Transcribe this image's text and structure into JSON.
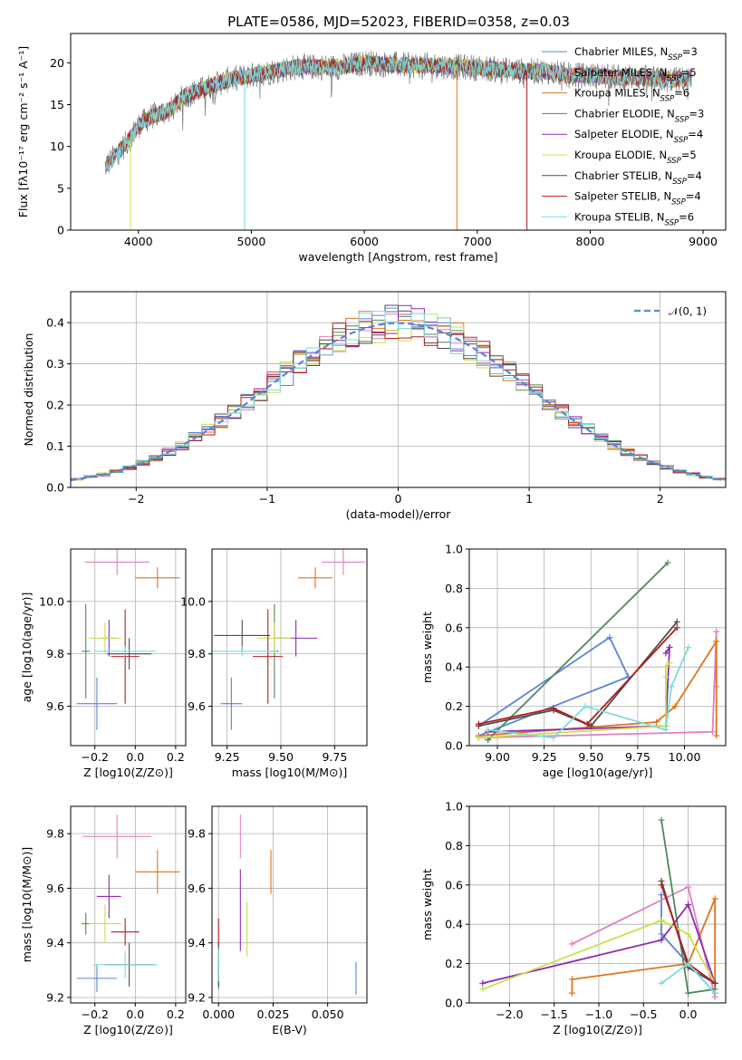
{
  "title": "PLATE=0586, MJD=52023, FIBERID=0358, z=0.03",
  "colors": {
    "chabrier_miles": "#5b84d6",
    "salpeter_miles": "#e37fbf",
    "kroupa_miles": "#e0731c",
    "chabrier_elodie": "#4c8a5e",
    "salpeter_elodie": "#8e2bb5",
    "kroupa_elodie": "#c9e04a",
    "chabrier_stelib": "#4d4d4d",
    "salpeter_stelib": "#b41d1d",
    "kroupa_stelib": "#7edbe0"
  },
  "chart_data": [
    {
      "id": "spectrum",
      "type": "line",
      "title": "PLATE=0586, MJD=52023, FIBERID=0358, z=0.03",
      "xlabel": "wavelength [Angstrom, rest frame]",
      "ylabel": "Flux [fλ10⁻¹⁷ erg cm⁻² s⁻¹ A⁻¹]",
      "xlim": [
        3400,
        9200
      ],
      "ylim": [
        0,
        23.5
      ],
      "xticks": [
        4000,
        5000,
        6000,
        7000,
        8000,
        9000
      ],
      "yticks": [
        0,
        5,
        10,
        15,
        20
      ],
      "legend_position": "top-right",
      "legend": [
        "Chabrier MILES, N_SSP=3",
        "Salpeter MILES, N_SSP=5",
        "Kroupa MILES, N_SSP=6",
        "Chabrier ELODIE, N_SSP=3",
        "Salpeter ELODIE, N_SSP=4",
        "Kroupa ELODIE, N_SSP=5",
        "Chabrier STELIB, N_SSP=4",
        "Salpeter STELIB, N_SSP=4",
        "Kroupa STELIB, N_SSP=6"
      ],
      "continuum": {
        "x": [
          3700,
          3800,
          3900,
          4000,
          4100,
          4200,
          4300,
          4400,
          4500,
          4600,
          4800,
          5000,
          5200,
          5400,
          5600,
          5800,
          6000,
          6200,
          6400,
          6600,
          6800,
          7000,
          7200,
          7400,
          7600,
          7800,
          8000,
          8200,
          8400,
          8600,
          8800,
          8900
        ],
        "y": [
          7.5,
          9,
          10.5,
          12.5,
          13.5,
          14,
          14.5,
          16,
          16.5,
          17,
          18,
          18.5,
          19,
          19.5,
          19.5,
          19.5,
          20,
          19.8,
          19.7,
          19.7,
          19.5,
          19.4,
          19.2,
          19,
          19,
          18.5,
          18.5,
          18.3,
          18.3,
          18,
          18,
          18
        ]
      }
    },
    {
      "id": "residual-hist",
      "type": "histogram",
      "xlabel": "(data-model)/error",
      "ylabel": "Normed distribution",
      "xlim": [
        -2.5,
        2.5
      ],
      "ylim": [
        0,
        0.475
      ],
      "xticks": [
        -2,
        -1,
        0,
        1,
        2
      ],
      "yticks": [
        0,
        0.1,
        0.2,
        0.3,
        0.4
      ],
      "legend": "𝒩(0, 1)",
      "legend_position": "top-right",
      "bin_width": 0.1,
      "reference_curve": "normal(0, 1)"
    },
    {
      "id": "age-vs-z",
      "type": "scatter",
      "xlabel": "Z [log10(Z/Z⊙)]",
      "ylabel": "age [log10(age/yr)]",
      "xlim": [
        -0.32,
        0.25
      ],
      "ylim": [
        9.45,
        10.2
      ],
      "xticks": [
        -0.2,
        0.0,
        0.2
      ],
      "yticks": [
        9.6,
        9.8,
        10.0
      ],
      "points": [
        {
          "x": -0.19,
          "y": 9.61,
          "xerr": 0.1,
          "yerr": 0.1
        },
        {
          "x": -0.09,
          "y": 10.15,
          "xerr": 0.16,
          "yerr": 0.05
        },
        {
          "x": 0.11,
          "y": 10.09,
          "xerr": 0.11,
          "yerr": 0.04
        },
        {
          "x": -0.245,
          "y": 9.81,
          "xerr": 0.02,
          "yerr": 0.18
        },
        {
          "x": -0.13,
          "y": 9.86,
          "xerr": 0.04,
          "yerr": 0.07
        },
        {
          "x": -0.15,
          "y": 9.86,
          "xerr": 0.08,
          "yerr": 0.06
        },
        {
          "x": -0.03,
          "y": 9.8,
          "xerr": 0.11,
          "yerr": 0.06
        },
        {
          "x": -0.05,
          "y": 9.79,
          "xerr": 0.07,
          "yerr": 0.18
        },
        {
          "x": -0.05,
          "y": 9.81,
          "xerr": 0.15,
          "yerr": 0.02
        }
      ]
    },
    {
      "id": "age-vs-mass",
      "type": "scatter",
      "xlabel": "mass [log10(M/M⊙)]",
      "ylabel": "",
      "xlim": [
        9.18,
        9.9
      ],
      "ylim": [
        9.45,
        10.2
      ],
      "xticks": [
        9.25,
        9.5,
        9.75
      ],
      "yticks": [
        9.6,
        9.8,
        10.0
      ],
      "points": [
        {
          "x": 9.27,
          "y": 9.61,
          "xerr": 0.05,
          "yerr": 0.1
        },
        {
          "x": 9.79,
          "y": 10.15,
          "xerr": 0.1,
          "yerr": 0.05
        },
        {
          "x": 9.66,
          "y": 10.09,
          "xerr": 0.08,
          "yerr": 0.04
        },
        {
          "x": 9.47,
          "y": 9.81,
          "xerr": 0.02,
          "yerr": 0.18
        },
        {
          "x": 9.57,
          "y": 9.86,
          "xerr": 0.1,
          "yerr": 0.07
        },
        {
          "x": 9.47,
          "y": 9.86,
          "xerr": 0.08,
          "yerr": 0.06
        },
        {
          "x": 9.32,
          "y": 9.87,
          "xerr": 0.13,
          "yerr": 0.06
        },
        {
          "x": 9.44,
          "y": 9.79,
          "xerr": 0.07,
          "yerr": 0.18
        },
        {
          "x": 9.32,
          "y": 9.81,
          "xerr": 0.16,
          "yerr": 0.02
        }
      ]
    },
    {
      "id": "weight-vs-age",
      "type": "line",
      "xlabel": "age [log10(age/yr)]",
      "ylabel": "mass weight",
      "xlim": [
        8.85,
        10.22
      ],
      "ylim": [
        0,
        1.0
      ],
      "xticks": [
        9.0,
        9.25,
        9.5,
        9.75,
        10.0
      ],
      "yticks": [
        0,
        0.2,
        0.4,
        0.6,
        0.8,
        1.0
      ],
      "series": [
        {
          "x": [
            8.9,
            9.6,
            9.7,
            8.9
          ],
          "y": [
            0.1,
            0.55,
            0.35,
            0.05
          ]
        },
        {
          "x": [
            8.9,
            10.15,
            10.17,
            10.17
          ],
          "y": [
            0.04,
            0.07,
            0.58,
            0.3
          ]
        },
        {
          "x": [
            8.9,
            9.85,
            9.95,
            10.17,
            10.17
          ],
          "y": [
            0.05,
            0.12,
            0.2,
            0.53,
            0.05
          ]
        },
        {
          "x": [
            8.95,
            9.91,
            8.95
          ],
          "y": [
            0.03,
            0.93,
            0.03
          ]
        },
        {
          "x": [
            8.95,
            9.9,
            9.92,
            9.9
          ],
          "y": [
            0.07,
            0.1,
            0.5,
            0.47
          ]
        },
        {
          "x": [
            8.9,
            9.9,
            9.9,
            9.9,
            9.92
          ],
          "y": [
            0.04,
            0.1,
            0.35,
            0.4,
            0.42
          ]
        },
        {
          "x": [
            8.9,
            9.3,
            9.5,
            9.96
          ],
          "y": [
            0.1,
            0.18,
            0.1,
            0.63
          ]
        },
        {
          "x": [
            8.9,
            9.3,
            9.48,
            9.96
          ],
          "y": [
            0.11,
            0.19,
            0.11,
            0.6
          ]
        },
        {
          "x": [
            8.95,
            9.3,
            9.47,
            9.9,
            9.93,
            10.02
          ],
          "y": [
            0.08,
            0.04,
            0.2,
            0.08,
            0.3,
            0.5
          ]
        }
      ]
    },
    {
      "id": "mass-vs-z",
      "type": "scatter",
      "xlabel": "Z [log10(Z/Z⊙)]",
      "ylabel": "mass [log10(M/M⊙)]",
      "xlim": [
        -0.32,
        0.25
      ],
      "ylim": [
        9.18,
        9.9
      ],
      "xticks": [
        -0.2,
        0.0,
        0.2
      ],
      "yticks": [
        9.2,
        9.4,
        9.6,
        9.8
      ],
      "points": [
        {
          "x": -0.19,
          "y": 9.27,
          "xerr": 0.1,
          "yerr": 0.05
        },
        {
          "x": -0.09,
          "y": 9.79,
          "xerr": 0.17,
          "yerr": 0.08
        },
        {
          "x": 0.11,
          "y": 9.66,
          "xerr": 0.11,
          "yerr": 0.08
        },
        {
          "x": -0.245,
          "y": 9.47,
          "xerr": 0.02,
          "yerr": 0.04
        },
        {
          "x": -0.13,
          "y": 9.57,
          "xerr": 0.06,
          "yerr": 0.08
        },
        {
          "x": -0.15,
          "y": 9.47,
          "xerr": 0.08,
          "yerr": 0.07
        },
        {
          "x": -0.03,
          "y": 9.32,
          "xerr": 0.12,
          "yerr": 0.08
        },
        {
          "x": -0.05,
          "y": 9.44,
          "xerr": 0.07,
          "yerr": 0.05
        },
        {
          "x": -0.05,
          "y": 9.32,
          "xerr": 0.16,
          "yerr": 0.05
        }
      ]
    },
    {
      "id": "mass-vs-ebv",
      "type": "scatter",
      "xlabel": "E(B-V)",
      "ylabel": "",
      "xlim": [
        -0.003,
        0.068
      ],
      "ylim": [
        9.18,
        9.9
      ],
      "xticks": [
        0.0,
        0.025,
        0.05
      ],
      "yticks": [
        9.2,
        9.4,
        9.6,
        9.8
      ],
      "points": [
        {
          "x": 0.063,
          "y": 9.27,
          "yerr": 0.06
        },
        {
          "x": 0.01,
          "y": 9.79,
          "yerr": 0.08
        },
        {
          "x": 0.024,
          "y": 9.66,
          "yerr": 0.08
        },
        {
          "x": 0.0,
          "y": 9.28,
          "yerr": 0.05
        },
        {
          "x": 0.01,
          "y": 9.52,
          "yerr": 0.15
        },
        {
          "x": 0.013,
          "y": 9.45,
          "yerr": 0.1
        },
        {
          "x": 0.0,
          "y": 9.32,
          "yerr": 0.08
        },
        {
          "x": 0.0,
          "y": 9.44,
          "yerr": 0.05
        },
        {
          "x": 0.0,
          "y": 9.32,
          "yerr": 0.06
        }
      ]
    },
    {
      "id": "weight-vs-z",
      "type": "line",
      "xlabel": "Z [log10(Z/Z⊙)]",
      "ylabel": "mass weight",
      "xlim": [
        -2.45,
        0.42
      ],
      "ylim": [
        0,
        1.0
      ],
      "xticks": [
        -2.0,
        -1.5,
        -1.0,
        -0.5,
        0.0
      ],
      "yticks": [
        0,
        0.2,
        0.4,
        0.6,
        0.8,
        1.0
      ],
      "series": [
        {
          "x": [
            -0.3,
            -0.3,
            0.0,
            0.3
          ],
          "y": [
            0.55,
            0.35,
            0.2,
            0.05
          ]
        },
        {
          "x": [
            -1.3,
            0.0,
            0.3
          ],
          "y": [
            0.3,
            0.59,
            0.03
          ]
        },
        {
          "x": [
            -1.3,
            -1.3,
            0.0,
            0.3,
            0.3
          ],
          "y": [
            0.05,
            0.12,
            0.2,
            0.53,
            0.05
          ]
        },
        {
          "x": [
            -0.3,
            0.0,
            0.3
          ],
          "y": [
            0.93,
            0.05,
            0.07
          ]
        },
        {
          "x": [
            -2.3,
            -0.3,
            0.0,
            0.3
          ],
          "y": [
            0.1,
            0.32,
            0.5,
            0.1
          ]
        },
        {
          "x": [
            -2.3,
            -0.3,
            0.0,
            0.3
          ],
          "y": [
            0.07,
            0.42,
            0.35,
            0.1
          ]
        },
        {
          "x": [
            -0.3,
            0.0,
            0.3
          ],
          "y": [
            0.62,
            0.18,
            0.1
          ]
        },
        {
          "x": [
            -0.3,
            0.0,
            0.3
          ],
          "y": [
            0.6,
            0.2,
            0.1
          ]
        },
        {
          "x": [
            -0.3,
            0.0,
            0.3
          ],
          "y": [
            0.1,
            0.2,
            0.05
          ]
        }
      ]
    }
  ]
}
